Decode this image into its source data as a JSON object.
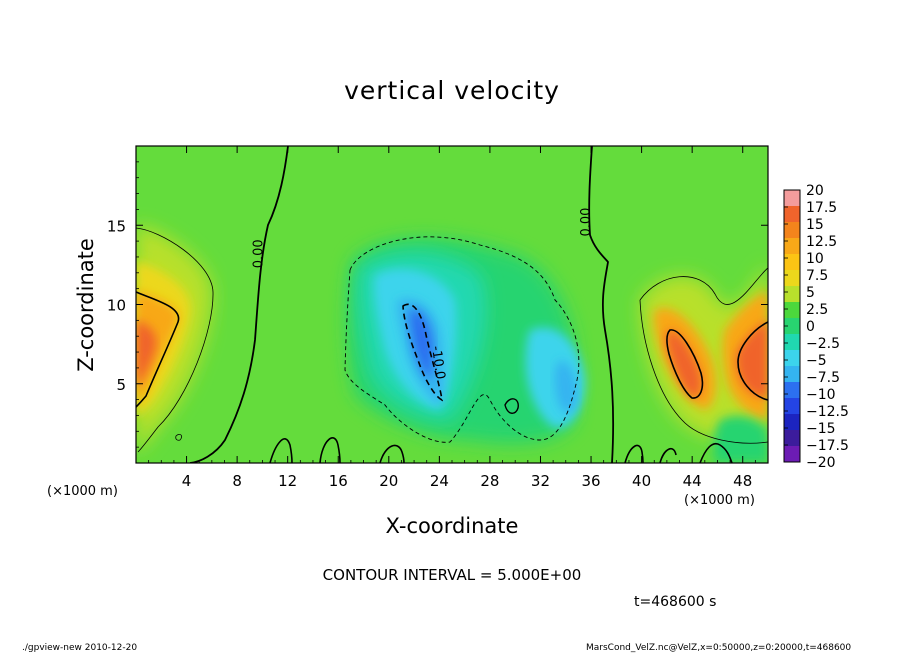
{
  "chart_data": {
    "type": "heatmap",
    "title": "vertical velocity",
    "xlabel": "X-coordinate",
    "ylabel": "Z-coordinate",
    "x_unit_left": "(×1000 m)",
    "x_unit_right": "(×1000 m)",
    "xlim": [
      0,
      50
    ],
    "ylim": [
      0,
      20
    ],
    "x_ticks": [
      4,
      8,
      12,
      16,
      20,
      24,
      28,
      32,
      36,
      40,
      44,
      48
    ],
    "y_ticks": [
      5,
      10,
      15
    ],
    "colorbar": {
      "levels": [
        20,
        17.5,
        15,
        12.5,
        10,
        7.5,
        5,
        2.5,
        0,
        -2.5,
        -5,
        -7.5,
        -10,
        -12.5,
        -15,
        -17.5,
        -20
      ],
      "tick_labels": [
        "20",
        "17.5",
        "15",
        "12.5",
        "10",
        "7.5",
        "5",
        "2.5",
        "0",
        "−2.5",
        "−5",
        "−7.5",
        "−10",
        "−12.5",
        "−15",
        "−17.5",
        "−20"
      ],
      "colors": [
        "#f49c9c",
        "#f0642c",
        "#f4841c",
        "#f8a818",
        "#fcc414",
        "#ecd81c",
        "#b8e02c",
        "#4cd83c",
        "#28d470",
        "#20d8b0",
        "#3cd4ec",
        "#34b4f0",
        "#2c70f0",
        "#2444e4",
        "#1c24c0",
        "#3c1c9c",
        "#6c1cb4"
      ]
    },
    "contour_labels": [
      {
        "text": "0.00",
        "x": 10.0,
        "y": 13.2
      },
      {
        "text": "0.00",
        "x": 35.9,
        "y": 15.2
      },
      {
        "text": "-10.0",
        "x": 23.6,
        "y": 6.3
      }
    ],
    "contour_interval_text": "CONTOUR INTERVAL = 5.000E+00",
    "time_text": "t=468600 s",
    "background_w": 0.5,
    "features": [
      {
        "kind": "updraft",
        "x": 1.0,
        "z": 5.8,
        "w": 11
      },
      {
        "kind": "updraft",
        "x": 2.6,
        "z": 8.5,
        "w": 10
      },
      {
        "kind": "updraft",
        "x": 43.8,
        "z": 6.8,
        "w": 10
      },
      {
        "kind": "updraft",
        "x": 48.0,
        "z": 6.2,
        "w": 10
      },
      {
        "kind": "downdraft",
        "x": 22.5,
        "z": 7.8,
        "w": -9
      },
      {
        "kind": "downdraft",
        "x": 33.5,
        "z": 4.5,
        "w": -6
      }
    ]
  },
  "footer": {
    "left": "./gpview-new  2010-12-20",
    "right": "MarsCond_VelZ.nc@VelZ,x=0:50000,z=0:20000,t=468600"
  }
}
